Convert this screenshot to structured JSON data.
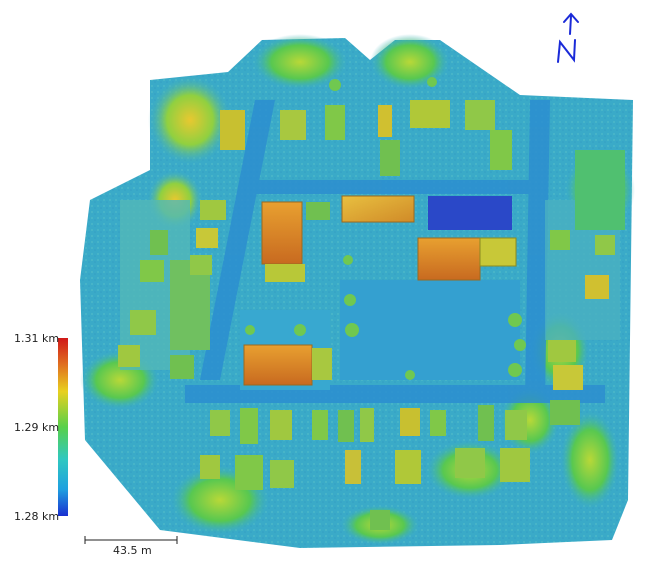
{
  "legend": {
    "max_label": "1.31 km",
    "mid_label": "1.29 km",
    "min_label": "1.28 km",
    "colors": [
      "#1a2fd0",
      "#1fa0e0",
      "#30c8c0",
      "#58d04a",
      "#e8d020",
      "#e07020",
      "#d01818"
    ]
  },
  "scale_bar": {
    "label": "43.5 m"
  },
  "north_arrow": {
    "label": "N",
    "color": "#1a2ad8"
  },
  "palette": {
    "base_low": "#2a9ad8",
    "base": "#3ab0c8",
    "mid": "#48c0b0",
    "green": "#60c848",
    "yellow": "#d8c030",
    "orange": "#d88028",
    "deep_blue": "#2a4ac8"
  }
}
